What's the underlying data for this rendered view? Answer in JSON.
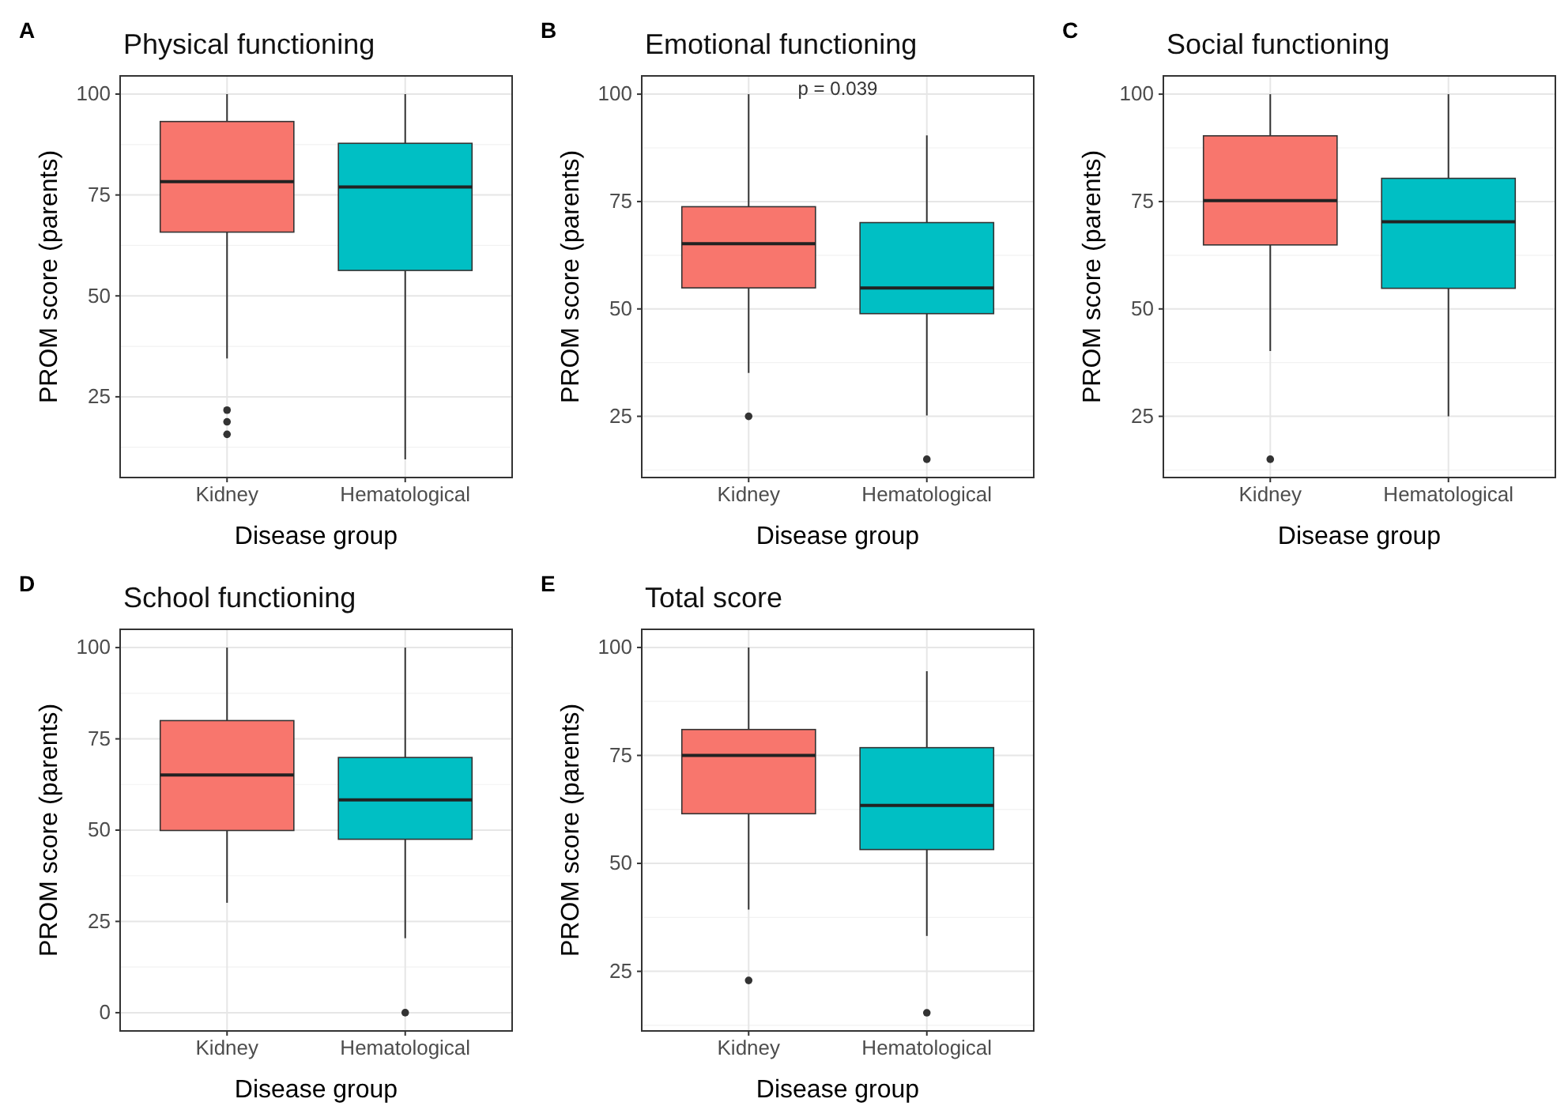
{
  "chart_data": [
    {
      "type": "box",
      "title": "Physical functioning",
      "annotations": [
        "A"
      ],
      "xlabel": "Disease group",
      "ylabel": "PROM score (parents)",
      "categories": [
        "Kidney",
        "Hematological"
      ],
      "colors": [
        "#f8766d",
        "#00bfc4"
      ],
      "ylim": [
        5,
        104.5
      ],
      "yticks": [
        25,
        50,
        75,
        100
      ],
      "grid": true,
      "boxes": [
        {
          "low": 34.5,
          "q1": 65.8,
          "median": 78.3,
          "q3": 93.2,
          "high": 100,
          "outliers": [
            21.7,
            18.8,
            15.7
          ]
        },
        {
          "low": 9.5,
          "q1": 56.3,
          "median": 77,
          "q3": 87.8,
          "high": 100
        }
      ]
    },
    {
      "type": "box",
      "title": "Emotional functioning",
      "annotations": [
        "B",
        "p = 0.039"
      ],
      "xlabel": "Disease group",
      "ylabel": "PROM score (parents)",
      "categories": [
        "Kidney",
        "Hematological"
      ],
      "colors": [
        "#f8766d",
        "#00bfc4"
      ],
      "ylim": [
        10.75,
        104.25
      ],
      "yticks": [
        25,
        50,
        75,
        100
      ],
      "grid": true,
      "boxes": [
        {
          "low": 35.1,
          "q1": 54.9,
          "median": 65.2,
          "q3": 73.8,
          "high": 100,
          "outliers": [
            25
          ]
        },
        {
          "low": 25.2,
          "q1": 48.9,
          "median": 54.9,
          "q3": 70.1,
          "high": 90.4,
          "outliers": [
            15
          ]
        }
      ]
    },
    {
      "type": "box",
      "title": "Social functioning",
      "annotations": [
        "C"
      ],
      "xlabel": "Disease group",
      "ylabel": "PROM score (parents)",
      "categories": [
        "Kidney",
        "Hematological"
      ],
      "colors": [
        "#f8766d",
        "#00bfc4"
      ],
      "ylim": [
        10.75,
        104.25
      ],
      "yticks": [
        25,
        50,
        75,
        100
      ],
      "grid": true,
      "boxes": [
        {
          "low": 40.2,
          "q1": 64.9,
          "median": 75.2,
          "q3": 90.3,
          "high": 100,
          "outliers": [
            15
          ]
        },
        {
          "low": 25,
          "q1": 54.8,
          "median": 70.3,
          "q3": 80.4,
          "high": 100
        }
      ]
    },
    {
      "type": "box",
      "title": "School functioning",
      "annotations": [
        "D"
      ],
      "xlabel": "Disease group",
      "ylabel": "PROM score (parents)",
      "categories": [
        "Kidney",
        "Hematological"
      ],
      "colors": [
        "#f8766d",
        "#00bfc4"
      ],
      "ylim": [
        -5,
        105
      ],
      "yticks": [
        0,
        25,
        50,
        75,
        100
      ],
      "grid": true,
      "boxes": [
        {
          "low": 30.1,
          "q1": 49.9,
          "median": 65.1,
          "q3": 80,
          "high": 100
        },
        {
          "low": 20.4,
          "q1": 47.5,
          "median": 58.3,
          "q3": 69.9,
          "high": 100,
          "outliers": [
            0
          ]
        }
      ]
    },
    {
      "type": "box",
      "title": "Total score",
      "annotations": [
        "E"
      ],
      "xlabel": "Disease group",
      "ylabel": "PROM score (parents)",
      "categories": [
        "Kidney",
        "Hematological"
      ],
      "colors": [
        "#f8766d",
        "#00bfc4"
      ],
      "ylim": [
        11.2,
        104.2
      ],
      "yticks": [
        25,
        50,
        75,
        100
      ],
      "grid": true,
      "boxes": [
        {
          "low": 39.3,
          "q1": 61.5,
          "median": 75,
          "q3": 81,
          "high": 100,
          "outliers": [
            22.9
          ]
        },
        {
          "low": 33.2,
          "q1": 53.2,
          "median": 63.4,
          "q3": 76.8,
          "high": 94.5,
          "outliers": [
            15.4
          ]
        }
      ]
    }
  ]
}
